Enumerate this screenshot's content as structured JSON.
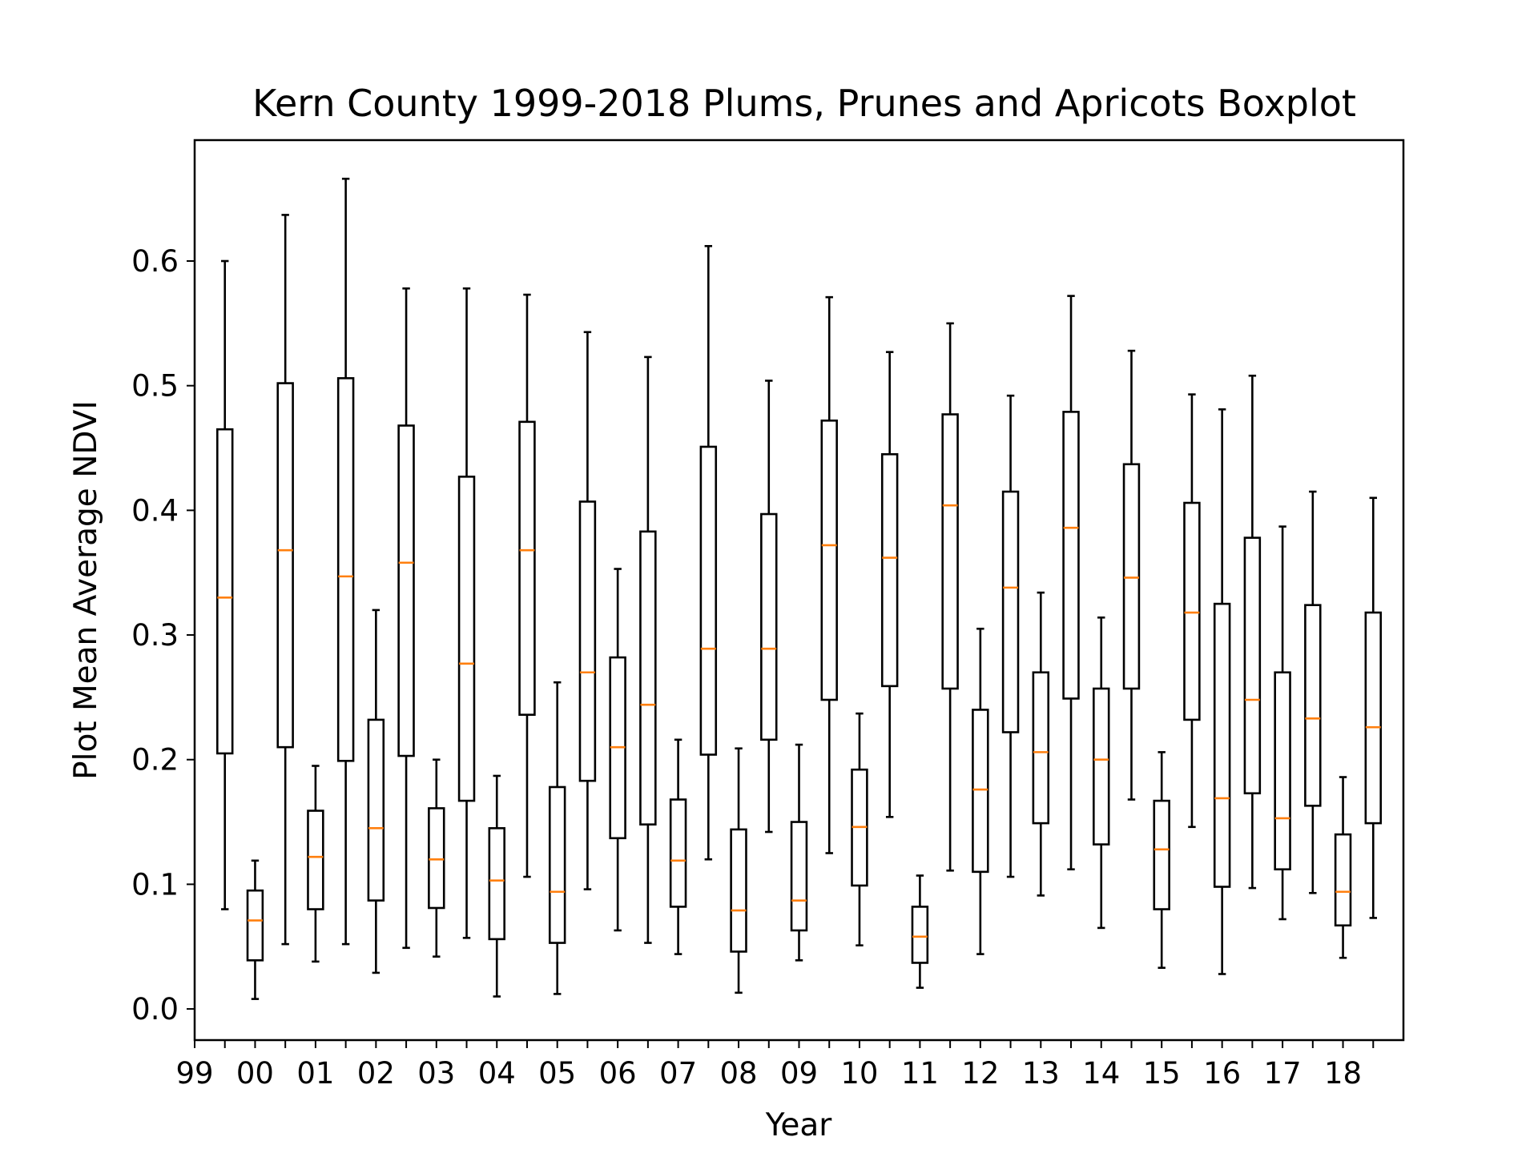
{
  "chart_data": {
    "type": "boxplot",
    "title": "Kern County 1999-2018 Plums, Prunes and Apricots Boxplot",
    "xlabel": "Year",
    "ylabel": "Plot Mean Average NDVI",
    "ylim": [
      -0.025,
      0.697
    ],
    "yticks": [
      "0.0",
      "0.1",
      "0.2",
      "0.3",
      "0.4",
      "0.5",
      "0.6"
    ],
    "ytick_values": [
      0.0,
      0.1,
      0.2,
      0.3,
      0.4,
      0.5,
      0.6
    ],
    "xtick_labels": [
      "99",
      "00",
      "01",
      "02",
      "03",
      "04",
      "05",
      "06",
      "07",
      "08",
      "09",
      "10",
      "11",
      "12",
      "13",
      "14",
      "15",
      "16",
      "17",
      "18"
    ],
    "grid": false,
    "colors": {
      "box": "#000000",
      "median": "#ff7f0e",
      "background": "#ffffff"
    },
    "boxes": [
      {
        "whislo": 0.08,
        "q1": 0.205,
        "med": 0.33,
        "q3": 0.465,
        "whishi": 0.6
      },
      {
        "whislo": 0.008,
        "q1": 0.039,
        "med": 0.071,
        "q3": 0.095,
        "whishi": 0.119
      },
      {
        "whislo": 0.052,
        "q1": 0.21,
        "med": 0.368,
        "q3": 0.502,
        "whishi": 0.637
      },
      {
        "whislo": 0.038,
        "q1": 0.08,
        "med": 0.122,
        "q3": 0.159,
        "whishi": 0.195
      },
      {
        "whislo": 0.052,
        "q1": 0.199,
        "med": 0.347,
        "q3": 0.506,
        "whishi": 0.666
      },
      {
        "whislo": 0.029,
        "q1": 0.087,
        "med": 0.145,
        "q3": 0.232,
        "whishi": 0.32
      },
      {
        "whislo": 0.049,
        "q1": 0.203,
        "med": 0.358,
        "q3": 0.468,
        "whishi": 0.578
      },
      {
        "whislo": 0.042,
        "q1": 0.081,
        "med": 0.12,
        "q3": 0.161,
        "whishi": 0.2
      },
      {
        "whislo": 0.057,
        "q1": 0.167,
        "med": 0.277,
        "q3": 0.427,
        "whishi": 0.578
      },
      {
        "whislo": 0.01,
        "q1": 0.056,
        "med": 0.103,
        "q3": 0.145,
        "whishi": 0.187
      },
      {
        "whislo": 0.106,
        "q1": 0.236,
        "med": 0.368,
        "q3": 0.471,
        "whishi": 0.573
      },
      {
        "whislo": 0.012,
        "q1": 0.053,
        "med": 0.094,
        "q3": 0.178,
        "whishi": 0.262
      },
      {
        "whislo": 0.096,
        "q1": 0.183,
        "med": 0.27,
        "q3": 0.407,
        "whishi": 0.543
      },
      {
        "whislo": 0.063,
        "q1": 0.137,
        "med": 0.21,
        "q3": 0.282,
        "whishi": 0.353
      },
      {
        "whislo": 0.053,
        "q1": 0.148,
        "med": 0.244,
        "q3": 0.383,
        "whishi": 0.523
      },
      {
        "whislo": 0.044,
        "q1": 0.082,
        "med": 0.119,
        "q3": 0.168,
        "whishi": 0.216
      },
      {
        "whislo": 0.12,
        "q1": 0.204,
        "med": 0.289,
        "q3": 0.451,
        "whishi": 0.612
      },
      {
        "whislo": 0.013,
        "q1": 0.046,
        "med": 0.079,
        "q3": 0.144,
        "whishi": 0.209
      },
      {
        "whislo": 0.142,
        "q1": 0.216,
        "med": 0.289,
        "q3": 0.397,
        "whishi": 0.504
      },
      {
        "whislo": 0.039,
        "q1": 0.063,
        "med": 0.087,
        "q3": 0.15,
        "whishi": 0.212
      },
      {
        "whislo": 0.125,
        "q1": 0.248,
        "med": 0.372,
        "q3": 0.472,
        "whishi": 0.571
      },
      {
        "whislo": 0.051,
        "q1": 0.099,
        "med": 0.146,
        "q3": 0.192,
        "whishi": 0.237
      },
      {
        "whislo": 0.154,
        "q1": 0.259,
        "med": 0.362,
        "q3": 0.445,
        "whishi": 0.527
      },
      {
        "whislo": 0.017,
        "q1": 0.037,
        "med": 0.058,
        "q3": 0.082,
        "whishi": 0.107
      },
      {
        "whislo": 0.111,
        "q1": 0.257,
        "med": 0.404,
        "q3": 0.477,
        "whishi": 0.55
      },
      {
        "whislo": 0.044,
        "q1": 0.11,
        "med": 0.176,
        "q3": 0.24,
        "whishi": 0.305
      },
      {
        "whislo": 0.106,
        "q1": 0.222,
        "med": 0.338,
        "q3": 0.415,
        "whishi": 0.492
      },
      {
        "whislo": 0.091,
        "q1": 0.149,
        "med": 0.206,
        "q3": 0.27,
        "whishi": 0.334
      },
      {
        "whislo": 0.112,
        "q1": 0.249,
        "med": 0.386,
        "q3": 0.479,
        "whishi": 0.572
      },
      {
        "whislo": 0.065,
        "q1": 0.132,
        "med": 0.2,
        "q3": 0.257,
        "whishi": 0.314
      },
      {
        "whislo": 0.168,
        "q1": 0.257,
        "med": 0.346,
        "q3": 0.437,
        "whishi": 0.528
      },
      {
        "whislo": 0.033,
        "q1": 0.08,
        "med": 0.128,
        "q3": 0.167,
        "whishi": 0.206
      },
      {
        "whislo": 0.146,
        "q1": 0.232,
        "med": 0.318,
        "q3": 0.406,
        "whishi": 0.493
      },
      {
        "whislo": 0.028,
        "q1": 0.098,
        "med": 0.169,
        "q3": 0.325,
        "whishi": 0.481
      },
      {
        "whislo": 0.097,
        "q1": 0.173,
        "med": 0.248,
        "q3": 0.378,
        "whishi": 0.508
      },
      {
        "whislo": 0.072,
        "q1": 0.112,
        "med": 0.153,
        "q3": 0.27,
        "whishi": 0.387
      },
      {
        "whislo": 0.093,
        "q1": 0.163,
        "med": 0.233,
        "q3": 0.324,
        "whishi": 0.415
      },
      {
        "whislo": 0.041,
        "q1": 0.067,
        "med": 0.094,
        "q3": 0.14,
        "whishi": 0.186
      },
      {
        "whislo": 0.073,
        "q1": 0.149,
        "med": 0.226,
        "q3": 0.318,
        "whishi": 0.41
      }
    ]
  }
}
